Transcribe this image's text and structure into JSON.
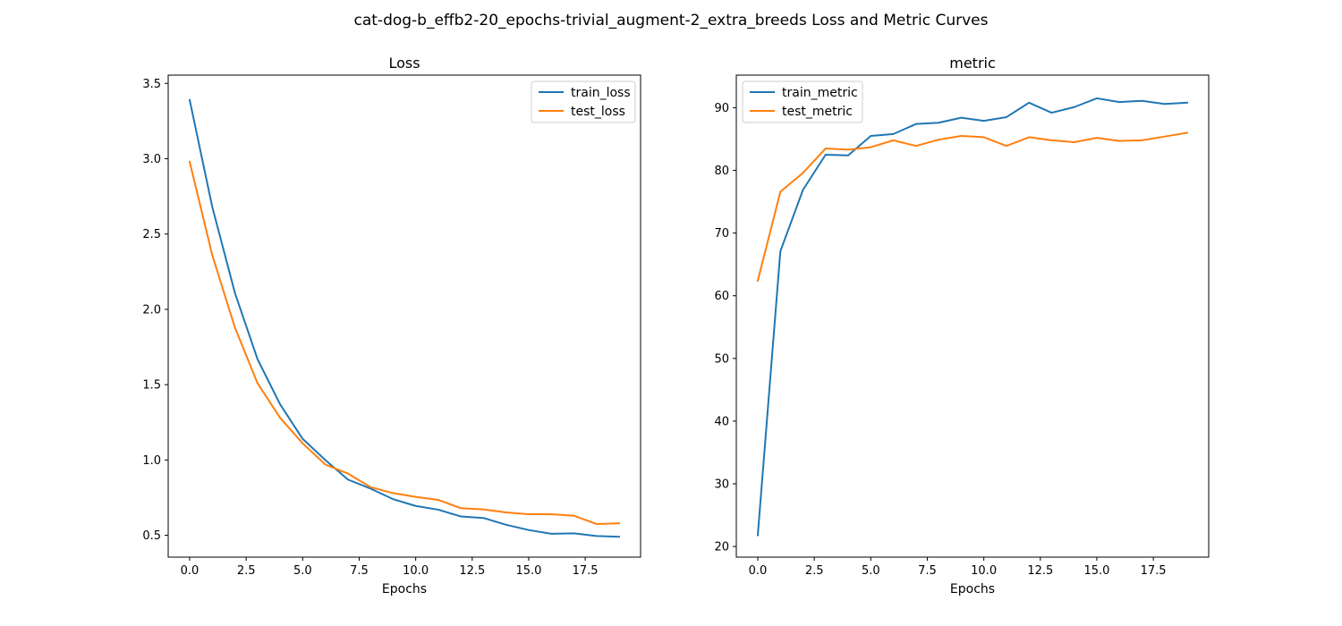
{
  "figure": {
    "suptitle": "cat-dog-b_effb2-20_epochs-trivial_augment-2_extra_breeds Loss and Metric Curves"
  },
  "chart_data": [
    {
      "type": "line",
      "title": "Loss",
      "xlabel": "Epochs",
      "ylabel": "",
      "xlim": [
        -0.95,
        19.95
      ],
      "ylim": [
        0.355,
        3.555
      ],
      "xticks": [
        0,
        2.5,
        5,
        7.5,
        10,
        12.5,
        15,
        17.5
      ],
      "xtick_labels": [
        "0.0",
        "2.5",
        "5.0",
        "7.5",
        "10.0",
        "12.5",
        "15.0",
        "17.5"
      ],
      "yticks": [
        0.5,
        1.0,
        1.5,
        2.0,
        2.5,
        3.0,
        3.5
      ],
      "ytick_labels": [
        "0.5",
        "1.0",
        "1.5",
        "2.0",
        "2.5",
        "3.0",
        "3.5"
      ],
      "grid": false,
      "legend_position": "upper right",
      "x": [
        0,
        1,
        2,
        3,
        4,
        5,
        6,
        7,
        8,
        9,
        10,
        11,
        12,
        13,
        14,
        15,
        16,
        17,
        18,
        19
      ],
      "series": [
        {
          "name": "train_loss",
          "color": "#1f77b4",
          "values": [
            3.39,
            2.68,
            2.11,
            1.67,
            1.37,
            1.14,
            1.0,
            0.87,
            0.81,
            0.74,
            0.695,
            0.67,
            0.625,
            0.615,
            0.57,
            0.535,
            0.51,
            0.513,
            0.495,
            0.49
          ]
        },
        {
          "name": "test_loss",
          "color": "#ff7f0e",
          "values": [
            2.98,
            2.36,
            1.88,
            1.51,
            1.28,
            1.11,
            0.97,
            0.91,
            0.82,
            0.78,
            0.755,
            0.735,
            0.68,
            0.672,
            0.652,
            0.64,
            0.64,
            0.63,
            0.575,
            0.58
          ]
        }
      ]
    },
    {
      "type": "line",
      "title": "metric",
      "xlabel": "Epochs",
      "ylabel": "",
      "xlim": [
        -0.95,
        19.95
      ],
      "ylim": [
        18.3,
        95.2
      ],
      "xticks": [
        0,
        2.5,
        5,
        7.5,
        10,
        12.5,
        15,
        17.5
      ],
      "xtick_labels": [
        "0.0",
        "2.5",
        "5.0",
        "7.5",
        "10.0",
        "12.5",
        "15.0",
        "17.5"
      ],
      "yticks": [
        20,
        30,
        40,
        50,
        60,
        70,
        80,
        90
      ],
      "ytick_labels": [
        "20",
        "30",
        "40",
        "50",
        "60",
        "70",
        "80",
        "90"
      ],
      "grid": false,
      "legend_position": "upper left",
      "x": [
        0,
        1,
        2,
        3,
        4,
        5,
        6,
        7,
        8,
        9,
        10,
        11,
        12,
        13,
        14,
        15,
        16,
        17,
        18,
        19
      ],
      "series": [
        {
          "name": "train_metric",
          "color": "#1f77b4",
          "values": [
            21.8,
            67.1,
            76.9,
            82.5,
            82.4,
            85.5,
            85.8,
            87.4,
            87.6,
            88.4,
            87.9,
            88.5,
            90.8,
            89.2,
            90.1,
            91.5,
            90.9,
            91.1,
            90.6,
            90.8
          ]
        },
        {
          "name": "test_metric",
          "color": "#ff7f0e",
          "values": [
            62.4,
            76.6,
            79.6,
            83.5,
            83.3,
            83.7,
            84.8,
            83.9,
            84.9,
            85.5,
            85.3,
            83.9,
            85.3,
            84.8,
            84.5,
            85.2,
            84.7,
            84.8,
            85.4,
            86.0
          ]
        }
      ]
    }
  ]
}
